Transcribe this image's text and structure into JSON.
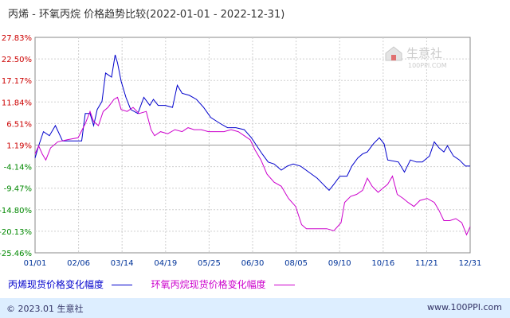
{
  "chart_data": {
    "type": "line",
    "title": "丙烯 - 环氧丙烷 价格趋势比较(2022-01-01 - 2022-12-31)",
    "xlabel": "",
    "ylabel": "",
    "x_ticks": [
      "01/01",
      "02/06",
      "03/14",
      "04/19",
      "05/25",
      "06/30",
      "08/05",
      "09/10",
      "10/16",
      "11/21",
      "12/31"
    ],
    "y_ticks": [
      "27.83%",
      "22.50%",
      "17.17%",
      "11.84%",
      "6.51%",
      "1.19%",
      "-4.14%",
      "-9.47%",
      "-14.80%",
      "-20.13%",
      "-25.46%"
    ],
    "ylim": [
      -25.46,
      27.83
    ],
    "grid": true,
    "legend_position": "bottom-left",
    "series": [
      {
        "name": "丙烯现货价格变化幅度",
        "color": "#0000cc",
        "points": [
          [
            "2022-01-01",
            -2.0
          ],
          [
            "2022-01-04",
            1.0
          ],
          [
            "2022-01-08",
            4.5
          ],
          [
            "2022-01-13",
            3.5
          ],
          [
            "2022-01-18",
            6.0
          ],
          [
            "2022-01-24",
            2.2
          ],
          [
            "2022-02-01",
            2.2
          ],
          [
            "2022-02-09",
            2.2
          ],
          [
            "2022-02-12",
            9.0
          ],
          [
            "2022-02-16",
            9.0
          ],
          [
            "2022-02-19",
            6.0
          ],
          [
            "2022-02-22",
            10.0
          ],
          [
            "2022-02-26",
            12.0
          ],
          [
            "2022-03-01",
            19.0
          ],
          [
            "2022-03-06",
            18.0
          ],
          [
            "2022-03-09",
            23.5
          ],
          [
            "2022-03-11",
            21.5
          ],
          [
            "2022-03-14",
            17.0
          ],
          [
            "2022-03-18",
            13.0
          ],
          [
            "2022-03-22",
            10.0
          ],
          [
            "2022-03-28",
            9.0
          ],
          [
            "2022-04-02",
            13.0
          ],
          [
            "2022-04-07",
            11.0
          ],
          [
            "2022-04-10",
            12.5
          ],
          [
            "2022-04-14",
            11.0
          ],
          [
            "2022-04-20",
            11.0
          ],
          [
            "2022-04-26",
            10.5
          ],
          [
            "2022-04-30",
            16.0
          ],
          [
            "2022-05-04",
            14.0
          ],
          [
            "2022-05-10",
            13.5
          ],
          [
            "2022-05-16",
            12.5
          ],
          [
            "2022-05-22",
            10.5
          ],
          [
            "2022-05-28",
            8.0
          ],
          [
            "2022-06-05",
            6.5
          ],
          [
            "2022-06-11",
            5.5
          ],
          [
            "2022-06-18",
            5.5
          ],
          [
            "2022-06-25",
            5.0
          ],
          [
            "2022-07-01",
            3.0
          ],
          [
            "2022-07-05",
            1.2
          ],
          [
            "2022-07-10",
            -1.0
          ],
          [
            "2022-07-15",
            -3.0
          ],
          [
            "2022-07-20",
            -3.5
          ],
          [
            "2022-07-26",
            -5.0
          ],
          [
            "2022-07-31",
            -4.0
          ],
          [
            "2022-08-05",
            -3.5
          ],
          [
            "2022-08-11",
            -4.0
          ],
          [
            "2022-08-18",
            -5.5
          ],
          [
            "2022-08-25",
            -7.0
          ],
          [
            "2022-08-30",
            -8.5
          ],
          [
            "2022-09-04",
            -10.0
          ],
          [
            "2022-09-08",
            -8.5
          ],
          [
            "2022-09-13",
            -6.5
          ],
          [
            "2022-09-19",
            -6.5
          ],
          [
            "2022-09-23",
            -4.0
          ],
          [
            "2022-09-28",
            -2.0
          ],
          [
            "2022-10-02",
            -1.0
          ],
          [
            "2022-10-06",
            -0.5
          ],
          [
            "2022-10-11",
            1.5
          ],
          [
            "2022-10-16",
            3.0
          ],
          [
            "2022-10-20",
            1.5
          ],
          [
            "2022-10-23",
            -2.5
          ],
          [
            "2022-11-01",
            -3.0
          ],
          [
            "2022-11-06",
            -5.5
          ],
          [
            "2022-11-11",
            -2.5
          ],
          [
            "2022-11-16",
            -3.0
          ],
          [
            "2022-11-21",
            -3.0
          ],
          [
            "2022-11-27",
            -1.5
          ],
          [
            "2022-12-01",
            2.0
          ],
          [
            "2022-12-05",
            0.5
          ],
          [
            "2022-12-09",
            -0.5
          ],
          [
            "2022-12-12",
            1.0
          ],
          [
            "2022-12-17",
            -1.5
          ],
          [
            "2022-12-22",
            -2.5
          ],
          [
            "2022-12-27",
            -4.0
          ],
          [
            "2022-12-31",
            -4.0
          ]
        ]
      },
      {
        "name": "环氧丙烷现货价格变化幅度",
        "color": "#cc00cc",
        "points": [
          [
            "2022-01-01",
            -1.0
          ],
          [
            "2022-01-04",
            1.0
          ],
          [
            "2022-01-07",
            -1.0
          ],
          [
            "2022-01-10",
            -2.5
          ],
          [
            "2022-01-14",
            0.5
          ],
          [
            "2022-01-20",
            2.0
          ],
          [
            "2022-01-28",
            2.5
          ],
          [
            "2022-02-06",
            3.0
          ],
          [
            "2022-02-12",
            6.5
          ],
          [
            "2022-02-16",
            9.5
          ],
          [
            "2022-02-19",
            7.0
          ],
          [
            "2022-02-23",
            6.0
          ],
          [
            "2022-02-27",
            9.5
          ],
          [
            "2022-03-03",
            10.5
          ],
          [
            "2022-03-08",
            12.5
          ],
          [
            "2022-03-11",
            13.0
          ],
          [
            "2022-03-14",
            10.0
          ],
          [
            "2022-03-19",
            9.5
          ],
          [
            "2022-03-24",
            10.5
          ],
          [
            "2022-03-29",
            9.0
          ],
          [
            "2022-04-04",
            9.5
          ],
          [
            "2022-04-08",
            5.0
          ],
          [
            "2022-04-11",
            3.5
          ],
          [
            "2022-04-16",
            4.5
          ],
          [
            "2022-04-22",
            4.0
          ],
          [
            "2022-04-28",
            5.0
          ],
          [
            "2022-05-04",
            4.5
          ],
          [
            "2022-05-09",
            5.5
          ],
          [
            "2022-05-14",
            5.0
          ],
          [
            "2022-05-20",
            5.0
          ],
          [
            "2022-05-26",
            4.5
          ],
          [
            "2022-06-01",
            4.5
          ],
          [
            "2022-06-08",
            4.5
          ],
          [
            "2022-06-14",
            5.0
          ],
          [
            "2022-06-20",
            4.5
          ],
          [
            "2022-06-25",
            3.5
          ],
          [
            "2022-06-30",
            2.5
          ],
          [
            "2022-07-04",
            0.0
          ],
          [
            "2022-07-09",
            -2.5
          ],
          [
            "2022-07-14",
            -6.0
          ],
          [
            "2022-07-20",
            -8.0
          ],
          [
            "2022-07-26",
            -9.0
          ],
          [
            "2022-08-01",
            -12.0
          ],
          [
            "2022-08-07",
            -14.0
          ],
          [
            "2022-08-12",
            -18.5
          ],
          [
            "2022-08-16",
            -19.5
          ],
          [
            "2022-08-21",
            -19.5
          ],
          [
            "2022-08-27",
            -19.5
          ],
          [
            "2022-09-02",
            -19.5
          ],
          [
            "2022-09-08",
            -20.0
          ],
          [
            "2022-09-14",
            -18.0
          ],
          [
            "2022-09-17",
            -13.0
          ],
          [
            "2022-09-22",
            -11.5
          ],
          [
            "2022-09-27",
            -11.0
          ],
          [
            "2022-10-02",
            -10.0
          ],
          [
            "2022-10-06",
            -7.0
          ],
          [
            "2022-10-10",
            -9.0
          ],
          [
            "2022-10-15",
            -10.5
          ],
          [
            "2022-10-19",
            -9.5
          ],
          [
            "2022-10-23",
            -8.5
          ],
          [
            "2022-10-27",
            -6.5
          ],
          [
            "2022-10-31",
            -11.0
          ],
          [
            "2022-11-05",
            -12.0
          ],
          [
            "2022-11-09",
            -13.0
          ],
          [
            "2022-11-14",
            -14.0
          ],
          [
            "2022-11-19",
            -12.5
          ],
          [
            "2022-11-25",
            -12.0
          ],
          [
            "2022-12-01",
            -13.0
          ],
          [
            "2022-12-05",
            -15.0
          ],
          [
            "2022-12-09",
            -17.5
          ],
          [
            "2022-12-14",
            -17.5
          ],
          [
            "2022-12-19",
            -17.0
          ],
          [
            "2022-12-24",
            -18.0
          ],
          [
            "2022-12-28",
            -21.0
          ],
          [
            "2022-12-31",
            -19.0
          ]
        ]
      }
    ]
  },
  "watermark": {
    "brand": "生意社",
    "url": "100PPI.COM"
  },
  "footer": {
    "left": "© 2023.01 生意社",
    "right": "www.100PPI.com"
  },
  "colors": {
    "axis_text": "#003399",
    "grid": "#cfcfcf",
    "footer_bg": "#ddeeff",
    "ytick_red": "#cc0000",
    "ytick_green": "#008800"
  }
}
